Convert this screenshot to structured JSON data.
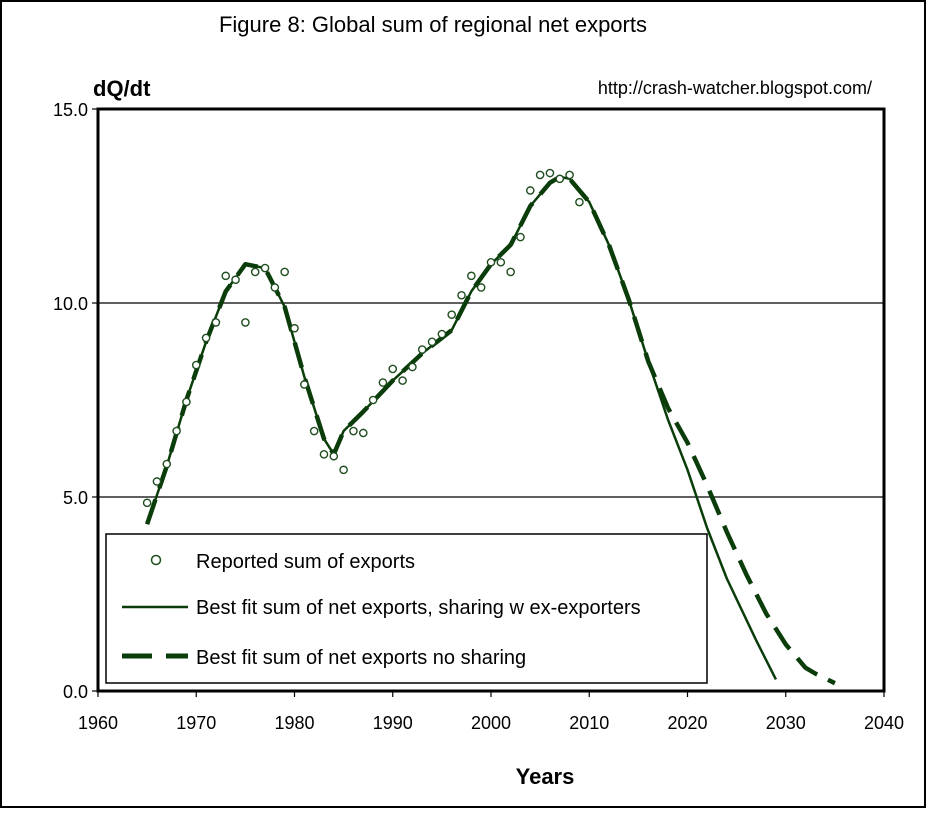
{
  "chart_data": {
    "type": "line",
    "title": "Figure 8: Global sum of regional net exports",
    "subtitle": "http://crash-watcher.blogspot.com/",
    "ylabel": "dQ/dt",
    "xlabel": "Years",
    "xlim": [
      1960,
      2040
    ],
    "ylim": [
      0,
      15
    ],
    "x_ticks": [
      "1960",
      "1970",
      "1980",
      "1990",
      "2000",
      "2010",
      "2020",
      "2030",
      "2040"
    ],
    "y_ticks": [
      "0.0",
      "5.0",
      "10.0",
      "15.0"
    ],
    "grid": "horizontal",
    "legend_position": "bottom-left",
    "series": [
      {
        "name": "Reported sum of exports",
        "style": "markers",
        "color": "#1f4d1f",
        "points": [
          [
            1965,
            4.85
          ],
          [
            1966,
            5.4
          ],
          [
            1967,
            5.85
          ],
          [
            1968,
            6.7
          ],
          [
            1969,
            7.45
          ],
          [
            1970,
            8.4
          ],
          [
            1971,
            9.1
          ],
          [
            1972,
            9.5
          ],
          [
            1973,
            10.7
          ],
          [
            1974,
            10.6
          ],
          [
            1975,
            9.5
          ],
          [
            1976,
            10.8
          ],
          [
            1977,
            10.9
          ],
          [
            1978,
            10.4
          ],
          [
            1979,
            10.8
          ],
          [
            1980,
            9.35
          ],
          [
            1981,
            7.9
          ],
          [
            1982,
            6.7
          ],
          [
            1983,
            6.1
          ],
          [
            1984,
            6.05
          ],
          [
            1985,
            5.7
          ],
          [
            1986,
            6.7
          ],
          [
            1987,
            6.65
          ],
          [
            1988,
            7.5
          ],
          [
            1989,
            7.95
          ],
          [
            1990,
            8.3
          ],
          [
            1991,
            8.0
          ],
          [
            1992,
            8.35
          ],
          [
            1993,
            8.8
          ],
          [
            1994,
            9.0
          ],
          [
            1995,
            9.2
          ],
          [
            1996,
            9.7
          ],
          [
            1997,
            10.2
          ],
          [
            1998,
            10.7
          ],
          [
            1999,
            10.4
          ],
          [
            2000,
            11.05
          ],
          [
            2001,
            11.05
          ],
          [
            2002,
            10.8
          ],
          [
            2003,
            11.7
          ],
          [
            2004,
            12.9
          ],
          [
            2005,
            13.3
          ],
          [
            2006,
            13.35
          ],
          [
            2007,
            13.2
          ],
          [
            2008,
            13.3
          ],
          [
            2009,
            12.6
          ]
        ]
      },
      {
        "name": "Best fit sum of net exports, sharing w ex-exporters",
        "style": "solid",
        "color": "#0a3d0a",
        "points": [
          [
            1965,
            4.3
          ],
          [
            1967,
            5.8
          ],
          [
            1969,
            7.5
          ],
          [
            1971,
            9.0
          ],
          [
            1973,
            10.3
          ],
          [
            1975,
            11.0
          ],
          [
            1977,
            10.9
          ],
          [
            1979,
            9.9
          ],
          [
            1981,
            8.1
          ],
          [
            1983,
            6.5
          ],
          [
            1984,
            6.1
          ],
          [
            1985,
            6.7
          ],
          [
            1987,
            7.2
          ],
          [
            1990,
            8.0
          ],
          [
            1993,
            8.7
          ],
          [
            1996,
            9.3
          ],
          [
            1998,
            10.3
          ],
          [
            2000,
            11.0
          ],
          [
            2002,
            11.5
          ],
          [
            2004,
            12.5
          ],
          [
            2006,
            13.1
          ],
          [
            2007,
            13.25
          ],
          [
            2008,
            13.2
          ],
          [
            2010,
            12.6
          ],
          [
            2012,
            11.5
          ],
          [
            2014,
            10.1
          ],
          [
            2016,
            8.5
          ],
          [
            2018,
            7.0
          ],
          [
            2020,
            5.7
          ],
          [
            2022,
            4.2
          ],
          [
            2024,
            2.9
          ],
          [
            2027,
            1.3
          ],
          [
            2029,
            0.3
          ]
        ]
      },
      {
        "name": "Best fit sum of net exports no sharing",
        "style": "dashed",
        "color": "#0a3d0a",
        "points": [
          [
            1965,
            4.3
          ],
          [
            1967,
            5.8
          ],
          [
            1969,
            7.5
          ],
          [
            1971,
            9.0
          ],
          [
            1973,
            10.3
          ],
          [
            1975,
            11.0
          ],
          [
            1977,
            10.9
          ],
          [
            1979,
            9.9
          ],
          [
            1981,
            8.1
          ],
          [
            1983,
            6.5
          ],
          [
            1984,
            6.1
          ],
          [
            1985,
            6.7
          ],
          [
            1987,
            7.2
          ],
          [
            1990,
            8.0
          ],
          [
            1993,
            8.7
          ],
          [
            1996,
            9.3
          ],
          [
            1998,
            10.3
          ],
          [
            2000,
            11.0
          ],
          [
            2002,
            11.5
          ],
          [
            2004,
            12.5
          ],
          [
            2006,
            13.1
          ],
          [
            2007,
            13.25
          ],
          [
            2008,
            13.2
          ],
          [
            2010,
            12.6
          ],
          [
            2012,
            11.5
          ],
          [
            2014,
            10.1
          ],
          [
            2016,
            8.5
          ],
          [
            2018,
            7.3
          ],
          [
            2020,
            6.4
          ],
          [
            2022,
            5.3
          ],
          [
            2024,
            4.1
          ],
          [
            2026,
            3.0
          ],
          [
            2028,
            2.0
          ],
          [
            2030,
            1.2
          ],
          [
            2032,
            0.6
          ],
          [
            2033,
            0.45
          ],
          [
            2035,
            0.2
          ]
        ]
      }
    ]
  }
}
